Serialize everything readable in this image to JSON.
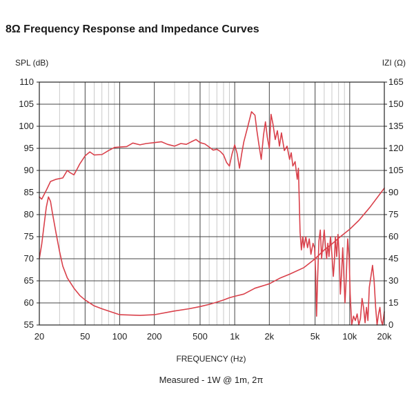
{
  "page_title": "8Ω Frequency Response and Impedance Curves",
  "chart_data": {
    "type": "line",
    "title": "8Ω Frequency Response and Impedance Curves",
    "xlabel": "FREQUENCY (Hz)",
    "ylabel_left": "SPL (dB)",
    "ylabel_right": "IZI (Ω)",
    "caption": "Measured - 1W @ 1m, 2π",
    "xscale": "log",
    "xlim": [
      20,
      20000
    ],
    "ylim_left": [
      55,
      110
    ],
    "ylim_right": [
      0,
      165
    ],
    "grid": true,
    "x_ticks": [
      {
        "value": 20,
        "label": "20"
      },
      {
        "value": 50,
        "label": "50"
      },
      {
        "value": 100,
        "label": "100"
      },
      {
        "value": 200,
        "label": "200"
      },
      {
        "value": 500,
        "label": "500"
      },
      {
        "value": 1000,
        "label": "1k"
      },
      {
        "value": 2000,
        "label": "2k"
      },
      {
        "value": 5000,
        "label": "5k"
      },
      {
        "value": 10000,
        "label": "10k"
      },
      {
        "value": 20000,
        "label": "20k"
      }
    ],
    "y_ticks_left": [
      55,
      60,
      65,
      70,
      75,
      80,
      85,
      90,
      95,
      100,
      105,
      110
    ],
    "y_ticks_right": [
      0,
      15,
      30,
      45,
      60,
      75,
      90,
      105,
      120,
      135,
      150,
      165
    ],
    "series": [
      {
        "name": "SPL",
        "axis": "left",
        "color": "#d9404a",
        "points": [
          [
            20,
            84
          ],
          [
            21,
            83.5
          ],
          [
            23,
            85.5
          ],
          [
            25,
            87.5
          ],
          [
            28,
            88
          ],
          [
            32,
            88.3
          ],
          [
            35,
            90
          ],
          [
            37,
            89.5
          ],
          [
            40,
            89
          ],
          [
            43,
            90.5
          ],
          [
            45,
            91.5
          ],
          [
            50,
            93.3
          ],
          [
            55,
            94.2
          ],
          [
            60,
            93.5
          ],
          [
            70,
            93.6
          ],
          [
            80,
            94.5
          ],
          [
            90,
            95.2
          ],
          [
            100,
            95.3
          ],
          [
            115,
            95.4
          ],
          [
            130,
            96.2
          ],
          [
            150,
            95.8
          ],
          [
            170,
            96.1
          ],
          [
            200,
            96.3
          ],
          [
            230,
            96.5
          ],
          [
            260,
            95.9
          ],
          [
            300,
            95.5
          ],
          [
            340,
            96.1
          ],
          [
            380,
            95.9
          ],
          [
            420,
            96.5
          ],
          [
            460,
            97
          ],
          [
            500,
            96.3
          ],
          [
            550,
            96
          ],
          [
            600,
            95.3
          ],
          [
            650,
            94.6
          ],
          [
            700,
            94.8
          ],
          [
            750,
            94.3
          ],
          [
            800,
            93.5
          ],
          [
            850,
            91.8
          ],
          [
            900,
            91
          ],
          [
            950,
            93.8
          ],
          [
            1000,
            95.8
          ],
          [
            1050,
            93.8
          ],
          [
            1100,
            90.5
          ],
          [
            1150,
            93.8
          ],
          [
            1200,
            96.5
          ],
          [
            1300,
            100
          ],
          [
            1400,
            103.3
          ],
          [
            1500,
            102.5
          ],
          [
            1560,
            99
          ],
          [
            1620,
            96
          ],
          [
            1700,
            92.5
          ],
          [
            1780,
            98
          ],
          [
            1850,
            101
          ],
          [
            1920,
            97.5
          ],
          [
            2000,
            95
          ],
          [
            2070,
            102.7
          ],
          [
            2150,
            100.5
          ],
          [
            2250,
            97
          ],
          [
            2350,
            99
          ],
          [
            2450,
            95.5
          ],
          [
            2550,
            98.5
          ],
          [
            2700,
            94.5
          ],
          [
            2850,
            95.5
          ],
          [
            3000,
            92.5
          ],
          [
            3100,
            94
          ],
          [
            3200,
            91
          ],
          [
            3350,
            92
          ],
          [
            3500,
            88
          ],
          [
            3580,
            90.5
          ],
          [
            3700,
            76
          ],
          [
            3800,
            72
          ],
          [
            3900,
            75
          ],
          [
            4000,
            72.5
          ],
          [
            4150,
            75
          ],
          [
            4300,
            72.5
          ],
          [
            4450,
            74.5
          ],
          [
            4600,
            71
          ],
          [
            4800,
            73.5
          ],
          [
            4950,
            72.5
          ],
          [
            5050,
            67
          ],
          [
            5150,
            57
          ],
          [
            5250,
            65
          ],
          [
            5400,
            74
          ],
          [
            5550,
            76.5
          ],
          [
            5700,
            70
          ],
          [
            5850,
            73.5
          ],
          [
            6000,
            76.5
          ],
          [
            6150,
            73
          ],
          [
            6300,
            70
          ],
          [
            6450,
            73.5
          ],
          [
            6600,
            70.5
          ],
          [
            6800,
            75
          ],
          [
            7000,
            71
          ],
          [
            7200,
            66
          ],
          [
            7350,
            69
          ],
          [
            7500,
            75
          ],
          [
            7700,
            70.5
          ],
          [
            7900,
            75.5
          ],
          [
            8100,
            71
          ],
          [
            8300,
            62
          ],
          [
            8500,
            67
          ],
          [
            8700,
            72.5
          ],
          [
            8900,
            66
          ],
          [
            9100,
            60
          ],
          [
            9300,
            65
          ],
          [
            9600,
            74.5
          ],
          [
            9900,
            70
          ],
          [
            10100,
            62
          ],
          [
            10400,
            55
          ],
          [
            10800,
            57
          ],
          [
            11200,
            56
          ],
          [
            11600,
            57.5
          ],
          [
            12000,
            55
          ],
          [
            12400,
            56.5
          ],
          [
            12800,
            61
          ],
          [
            13200,
            59
          ],
          [
            13600,
            55.5
          ],
          [
            14000,
            59
          ],
          [
            14400,
            56
          ],
          [
            14800,
            63.5
          ],
          [
            15300,
            66
          ],
          [
            15800,
            68.5
          ],
          [
            16300,
            65
          ],
          [
            16800,
            59
          ],
          [
            17300,
            55
          ],
          [
            17800,
            57.5
          ],
          [
            18300,
            59
          ],
          [
            18800,
            56
          ],
          [
            19300,
            55
          ],
          [
            20000,
            58
          ]
        ]
      },
      {
        "name": "Impedance",
        "axis": "right",
        "color": "#d9404a",
        "points": [
          [
            20,
            45
          ],
          [
            21,
            55
          ],
          [
            22,
            68
          ],
          [
            23,
            80
          ],
          [
            24,
            87
          ],
          [
            25,
            84
          ],
          [
            26,
            76
          ],
          [
            28,
            62
          ],
          [
            30,
            50
          ],
          [
            32,
            40
          ],
          [
            35,
            32
          ],
          [
            40,
            25
          ],
          [
            45,
            20
          ],
          [
            50,
            17
          ],
          [
            60,
            13
          ],
          [
            70,
            11
          ],
          [
            80,
            9.5
          ],
          [
            100,
            7
          ],
          [
            150,
            6.5
          ],
          [
            200,
            7
          ],
          [
            300,
            9.5
          ],
          [
            400,
            11
          ],
          [
            500,
            12.5
          ],
          [
            600,
            14
          ],
          [
            700,
            15.5
          ],
          [
            800,
            17
          ],
          [
            900,
            18.5
          ],
          [
            1000,
            19.5
          ],
          [
            1200,
            21
          ],
          [
            1500,
            25
          ],
          [
            2000,
            28
          ],
          [
            2500,
            32
          ],
          [
            3000,
            34.5
          ],
          [
            4000,
            39
          ],
          [
            5000,
            45
          ],
          [
            6000,
            51
          ],
          [
            7000,
            55
          ],
          [
            8000,
            59
          ],
          [
            10000,
            65
          ],
          [
            12000,
            71
          ],
          [
            15000,
            80
          ],
          [
            20000,
            93
          ]
        ]
      }
    ]
  }
}
